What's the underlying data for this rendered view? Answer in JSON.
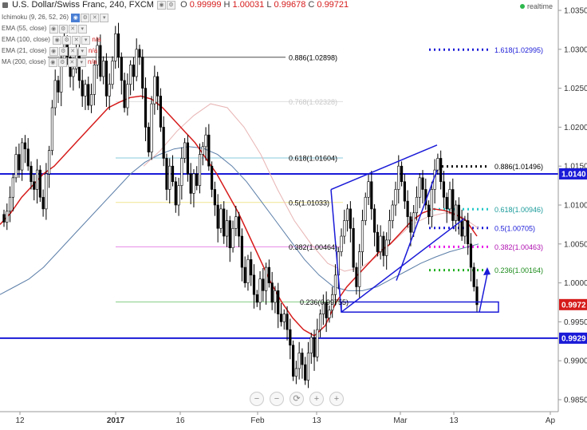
{
  "header": {
    "symbol_title": "U.S. Dollar/Swiss Franc, 240, FXCM",
    "o_label": "O",
    "o_value": "0.99999",
    "h_label": "H",
    "h_value": "1.00031",
    "l_label": "L",
    "l_value": "0.99678",
    "c_label": "C",
    "c_value": "0.99721",
    "realtime": "realtime"
  },
  "indicators": [
    {
      "label": "Ichimoku (9, 26, 52, 26)",
      "value": ""
    },
    {
      "label": "EMA (55, close)",
      "value": ""
    },
    {
      "label": "EMA (100, close)",
      "value": "n/a"
    },
    {
      "label": "EMA (21, close)",
      "value": "n/a"
    },
    {
      "label": "MA (200, close)",
      "value": "n/a"
    }
  ],
  "zoom_controls": [
    "−",
    "−",
    "⟳",
    "+",
    "+"
  ],
  "colors": {
    "up": "#000000",
    "down": "#000000",
    "ema21": "#d61b1b",
    "ma200": "#5b7ea8",
    "ema55": "#e8b4b4",
    "hline": "#1a1ad8",
    "fib_top": "#1a1ad8",
    "fib_bottom": "#1a1ad8"
  },
  "chart_data": {
    "type": "candlestick",
    "title": "U.S. Dollar/Swiss Franc, 240, FXCM",
    "ylim": [
      0.9825,
      1.0365
    ],
    "y_ticks": [
      "1.0350",
      "1.0300",
      "1.0250",
      "1.0200",
      "1.0150",
      "1.0100",
      "1.0050",
      "1.0000",
      "0.9950",
      "0.9900",
      "0.9850"
    ],
    "x_ticks": [
      "12",
      "2017",
      "16",
      "Feb",
      "13",
      "Mar",
      "13",
      "Ap"
    ],
    "price_tags": [
      {
        "label": "1.0140",
        "value": 1.014,
        "color": "#1a1ad8"
      },
      {
        "label": "0.9972",
        "value": 0.99721,
        "color": "#d61b1b"
      },
      {
        "label": "0.9929",
        "value": 0.9929,
        "color": "#1a1ad8"
      }
    ],
    "horizontal_lines": [
      1.014,
      0.9929
    ],
    "fib_left": [
      {
        "label": "0.886(1.02898)",
        "value": 1.02898,
        "color": "#000000"
      },
      {
        "label": "0.768(1.02328)",
        "value": 1.02328,
        "color": "#c8c8c8"
      },
      {
        "label": "0.618(1.01604)",
        "value": 1.01604,
        "color": "#3aa6c8"
      },
      {
        "label": "0.5(1.01033)",
        "value": 1.01033,
        "color": "#e8d44a"
      },
      {
        "label": "0.382(1.00464)",
        "value": 1.00464,
        "color": "#d63ad6"
      },
      {
        "label": "0.236(0.99755)",
        "value": 0.99755,
        "color": "#3ab03a"
      }
    ],
    "fib_right": [
      {
        "label": "1.618(1.02995)",
        "value": 1.02995,
        "color": "#1a1ad8"
      },
      {
        "label": "0.886(1.01496)",
        "value": 1.01496,
        "color": "#000000"
      },
      {
        "label": "0.618(1.00946)",
        "value": 1.00946,
        "color": "#22c8c8"
      },
      {
        "label": "0.5(1.00705)",
        "value": 1.00705,
        "color": "#1a1ad8"
      },
      {
        "label": "0.382(1.00463)",
        "value": 1.00463,
        "color": "#e81ae8"
      },
      {
        "label": "0.236(1.00164)",
        "value": 1.00164,
        "color": "#22b022"
      }
    ],
    "candle_closes": [
      1.0078,
      1.0092,
      1.011,
      1.0135,
      1.0165,
      1.0145,
      1.018,
      1.0172,
      1.015,
      1.013,
      1.012,
      1.0145,
      1.011,
      1.0095,
      1.014,
      1.017,
      1.0225,
      1.026,
      1.0245,
      1.0285,
      1.0312,
      1.029,
      1.0265,
      1.0275,
      1.03,
      1.026,
      1.024,
      1.0255,
      1.0228,
      1.0242,
      1.028,
      1.0305,
      1.0265,
      1.0285,
      1.024,
      1.0255,
      1.0285,
      1.032,
      1.029,
      1.026,
      1.0225,
      1.0255,
      1.028,
      1.0265,
      1.03,
      1.029,
      1.025,
      1.02,
      1.0168,
      1.023,
      1.0265,
      1.024,
      1.02,
      1.016,
      1.012,
      1.015,
      1.013,
      1.01,
      1.0125,
      1.016,
      1.018,
      1.014,
      1.0115,
      1.014,
      1.0125,
      1.0165,
      1.0175,
      1.019,
      1.015,
      1.012,
      1.01,
      1.007,
      1.0095,
      1.006,
      1.008,
      1.0045,
      1.007,
      1.0085,
      1.006,
      1.002,
      1.0,
      1.003,
      1.001,
      0.9985,
      0.9975,
      1.0005,
      0.999,
      1.002,
      1.0,
      0.9975,
      0.999,
      0.996,
      0.995,
      0.996,
      0.994,
      0.992,
      0.988,
      0.989,
      0.991,
      0.9895,
      0.9875,
      0.991,
      0.993,
      0.9905,
      0.994,
      0.996,
      0.9975,
      0.9955,
      0.9965,
      0.9985,
      1.001,
      1.004,
      1.006,
      1.008,
      1.0095,
      1.007,
      1.002,
      0.9995,
      1.004,
      1.008,
      1.011,
      1.013,
      1.0095,
      1.0065,
      1.004,
      1.006,
      1.0035,
      1.0055,
      1.008,
      1.01,
      1.012,
      1.015,
      1.013,
      1.0105,
      1.0085,
      1.0065,
      1.009,
      1.011,
      1.0135,
      1.012,
      1.01,
      1.0085,
      1.012,
      1.0145,
      1.016,
      1.013,
      1.011,
      1.0095,
      1.012,
      1.008,
      1.01,
      1.008,
      1.006,
      1.008,
      1.005,
      1.002,
      0.9995,
      0.9972
    ],
    "ema21": [
      1.0075,
      1.009,
      1.011,
      1.0125,
      1.014,
      1.015,
      1.0165,
      1.018,
      1.0195,
      1.021,
      1.0225,
      1.0232,
      1.0238,
      1.024,
      1.0236,
      1.0225,
      1.021,
      1.0195,
      1.018,
      1.016,
      1.014,
      1.0115,
      1.009,
      1.006,
      1.003,
      1.0,
      0.9975,
      0.9955,
      0.994,
      0.9932,
      0.9945,
      0.9975,
      0.9995,
      1.001,
      1.0025,
      1.004,
      1.005,
      1.0065,
      1.008,
      1.009,
      1.0095,
      1.0093,
      1.0088,
      1.008,
      1.006
    ],
    "ma200": [
      0.9985,
      0.9995,
      1.0005,
      1.002,
      1.004,
      1.006,
      1.008,
      1.01,
      1.012,
      1.014,
      1.0155,
      1.0165,
      1.0172,
      1.0175,
      1.0173,
      1.0165,
      1.015,
      1.013,
      1.0105,
      1.008,
      1.0055,
      1.003,
      1.001,
      0.9995,
      0.999,
      0.999,
      0.9995,
      1.0005,
      1.0015,
      1.0025,
      1.0033,
      1.004,
      1.0045,
      1.005
    ],
    "ema55": [
      1.015,
      1.017,
      1.0195,
      1.0215,
      1.023,
      1.0225,
      1.02,
      1.0165,
      1.012,
      1.008,
      1.005,
      1.0025,
      1.0015,
      1.002,
      1.0035,
      1.0055,
      1.0075,
      1.0085,
      1.009,
      1.0085,
      1.007
    ],
    "triangle_pattern": {
      "apex_price": 0.99625,
      "upper_start": 1.01199,
      "upper_end": 1.0177,
      "lower_end": 1.00825
    },
    "rectangles": [
      {
        "price_top": 0.99755,
        "price_bottom": 0.99625
      }
    ],
    "arrow": {
      "from_price": 0.99625,
      "to_price": 1.0018
    }
  }
}
